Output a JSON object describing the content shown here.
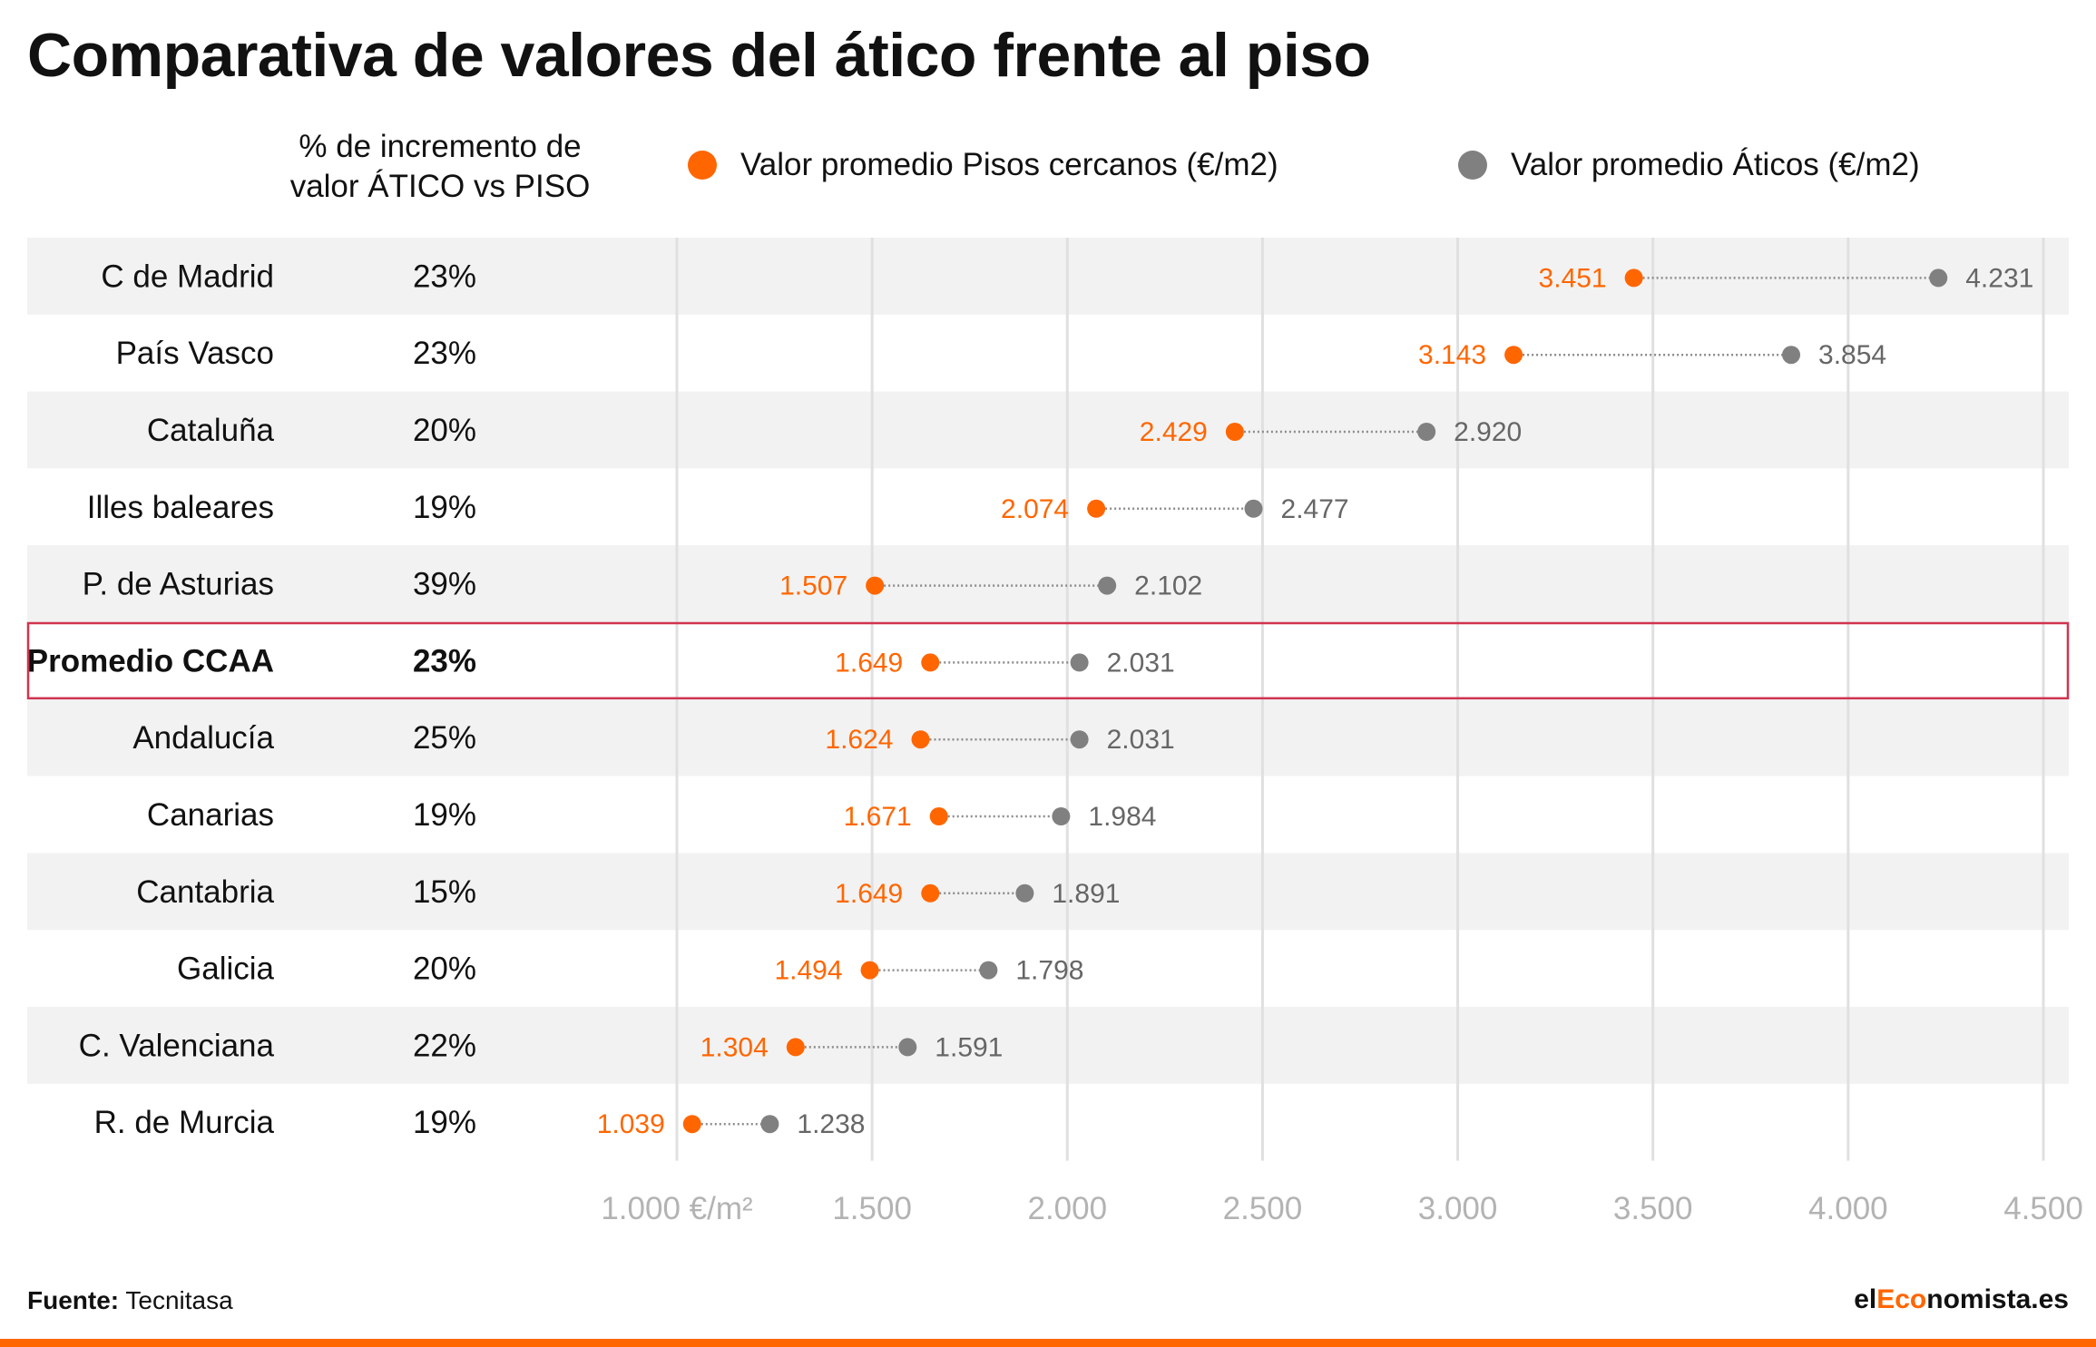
{
  "title": "Comparativa de valores del ático frente al piso",
  "pct_header_line1": "% de incremento de",
  "pct_header_line2": "valor ÁTICO vs PISO",
  "legend": [
    {
      "label": "Valor promedio Pisos cercanos (€/m2)",
      "color": "#ff6600"
    },
    {
      "label": "Valor promedio Áticos (€/m2)",
      "color": "#808080"
    }
  ],
  "footer": {
    "source_label": "Fuente:",
    "source_value": "Tecnitasa",
    "brand_prefix": "el",
    "brand_accent": "Eco",
    "brand_suffix": "nomista.es"
  },
  "chart_data": {
    "type": "dumbbell",
    "x_unit": "€/m²",
    "xlim": [
      1000,
      4500
    ],
    "x_ticks": [
      1000,
      1500,
      2000,
      2500,
      3000,
      3500,
      4000,
      4500
    ],
    "x_tick_labels": [
      "1.000 €/m²",
      "1.500",
      "2.000",
      "2.500",
      "3.000",
      "3.500",
      "4.000",
      "4.500"
    ],
    "grid": true,
    "series": [
      {
        "name": "Valor promedio Pisos cercanos (€/m2)",
        "color": "#ff6600"
      },
      {
        "name": "Valor promedio Áticos (€/m2)",
        "color": "#808080"
      }
    ],
    "rows": [
      {
        "region": "C de Madrid",
        "pct": "23%",
        "piso": 3451,
        "piso_label": "3.451",
        "atico": 4231,
        "atico_label": "4.231",
        "shaded": true,
        "highlight": false
      },
      {
        "region": "País Vasco",
        "pct": "23%",
        "piso": 3143,
        "piso_label": "3.143",
        "atico": 3854,
        "atico_label": "3.854",
        "shaded": false,
        "highlight": false
      },
      {
        "region": "Cataluña",
        "pct": "20%",
        "piso": 2429,
        "piso_label": "2.429",
        "atico": 2920,
        "atico_label": "2.920",
        "shaded": true,
        "highlight": false
      },
      {
        "region": "Illes baleares",
        "pct": "19%",
        "piso": 2074,
        "piso_label": "2.074",
        "atico": 2477,
        "atico_label": "2.477",
        "shaded": false,
        "highlight": false
      },
      {
        "region": "P. de Asturias",
        "pct": "39%",
        "piso": 1507,
        "piso_label": "1.507",
        "atico": 2102,
        "atico_label": "2.102",
        "shaded": true,
        "highlight": false
      },
      {
        "region": "Promedio CCAA",
        "pct": "23%",
        "piso": 1649,
        "piso_label": "1.649",
        "atico": 2031,
        "atico_label": "2.031",
        "shaded": false,
        "highlight": true
      },
      {
        "region": "Andalucía",
        "pct": "25%",
        "piso": 1624,
        "piso_label": "1.624",
        "atico": 2031,
        "atico_label": "2.031",
        "shaded": true,
        "highlight": false
      },
      {
        "region": "Canarias",
        "pct": "19%",
        "piso": 1671,
        "piso_label": "1.671",
        "atico": 1984,
        "atico_label": "1.984",
        "shaded": false,
        "highlight": false
      },
      {
        "region": "Cantabria",
        "pct": "15%",
        "piso": 1649,
        "piso_label": "1.649",
        "atico": 1891,
        "atico_label": "1.891",
        "shaded": true,
        "highlight": false
      },
      {
        "region": "Galicia",
        "pct": "20%",
        "piso": 1494,
        "piso_label": "1.494",
        "atico": 1798,
        "atico_label": "1.798",
        "shaded": false,
        "highlight": false
      },
      {
        "region": "C. Valenciana",
        "pct": "22%",
        "piso": 1304,
        "piso_label": "1.304",
        "atico": 1591,
        "atico_label": "1.591",
        "shaded": true,
        "highlight": false
      },
      {
        "region": "R. de Murcia",
        "pct": "19%",
        "piso": 1039,
        "piso_label": "1.039",
        "atico": 1238,
        "atico_label": "1.238",
        "shaded": false,
        "highlight": false
      }
    ]
  }
}
